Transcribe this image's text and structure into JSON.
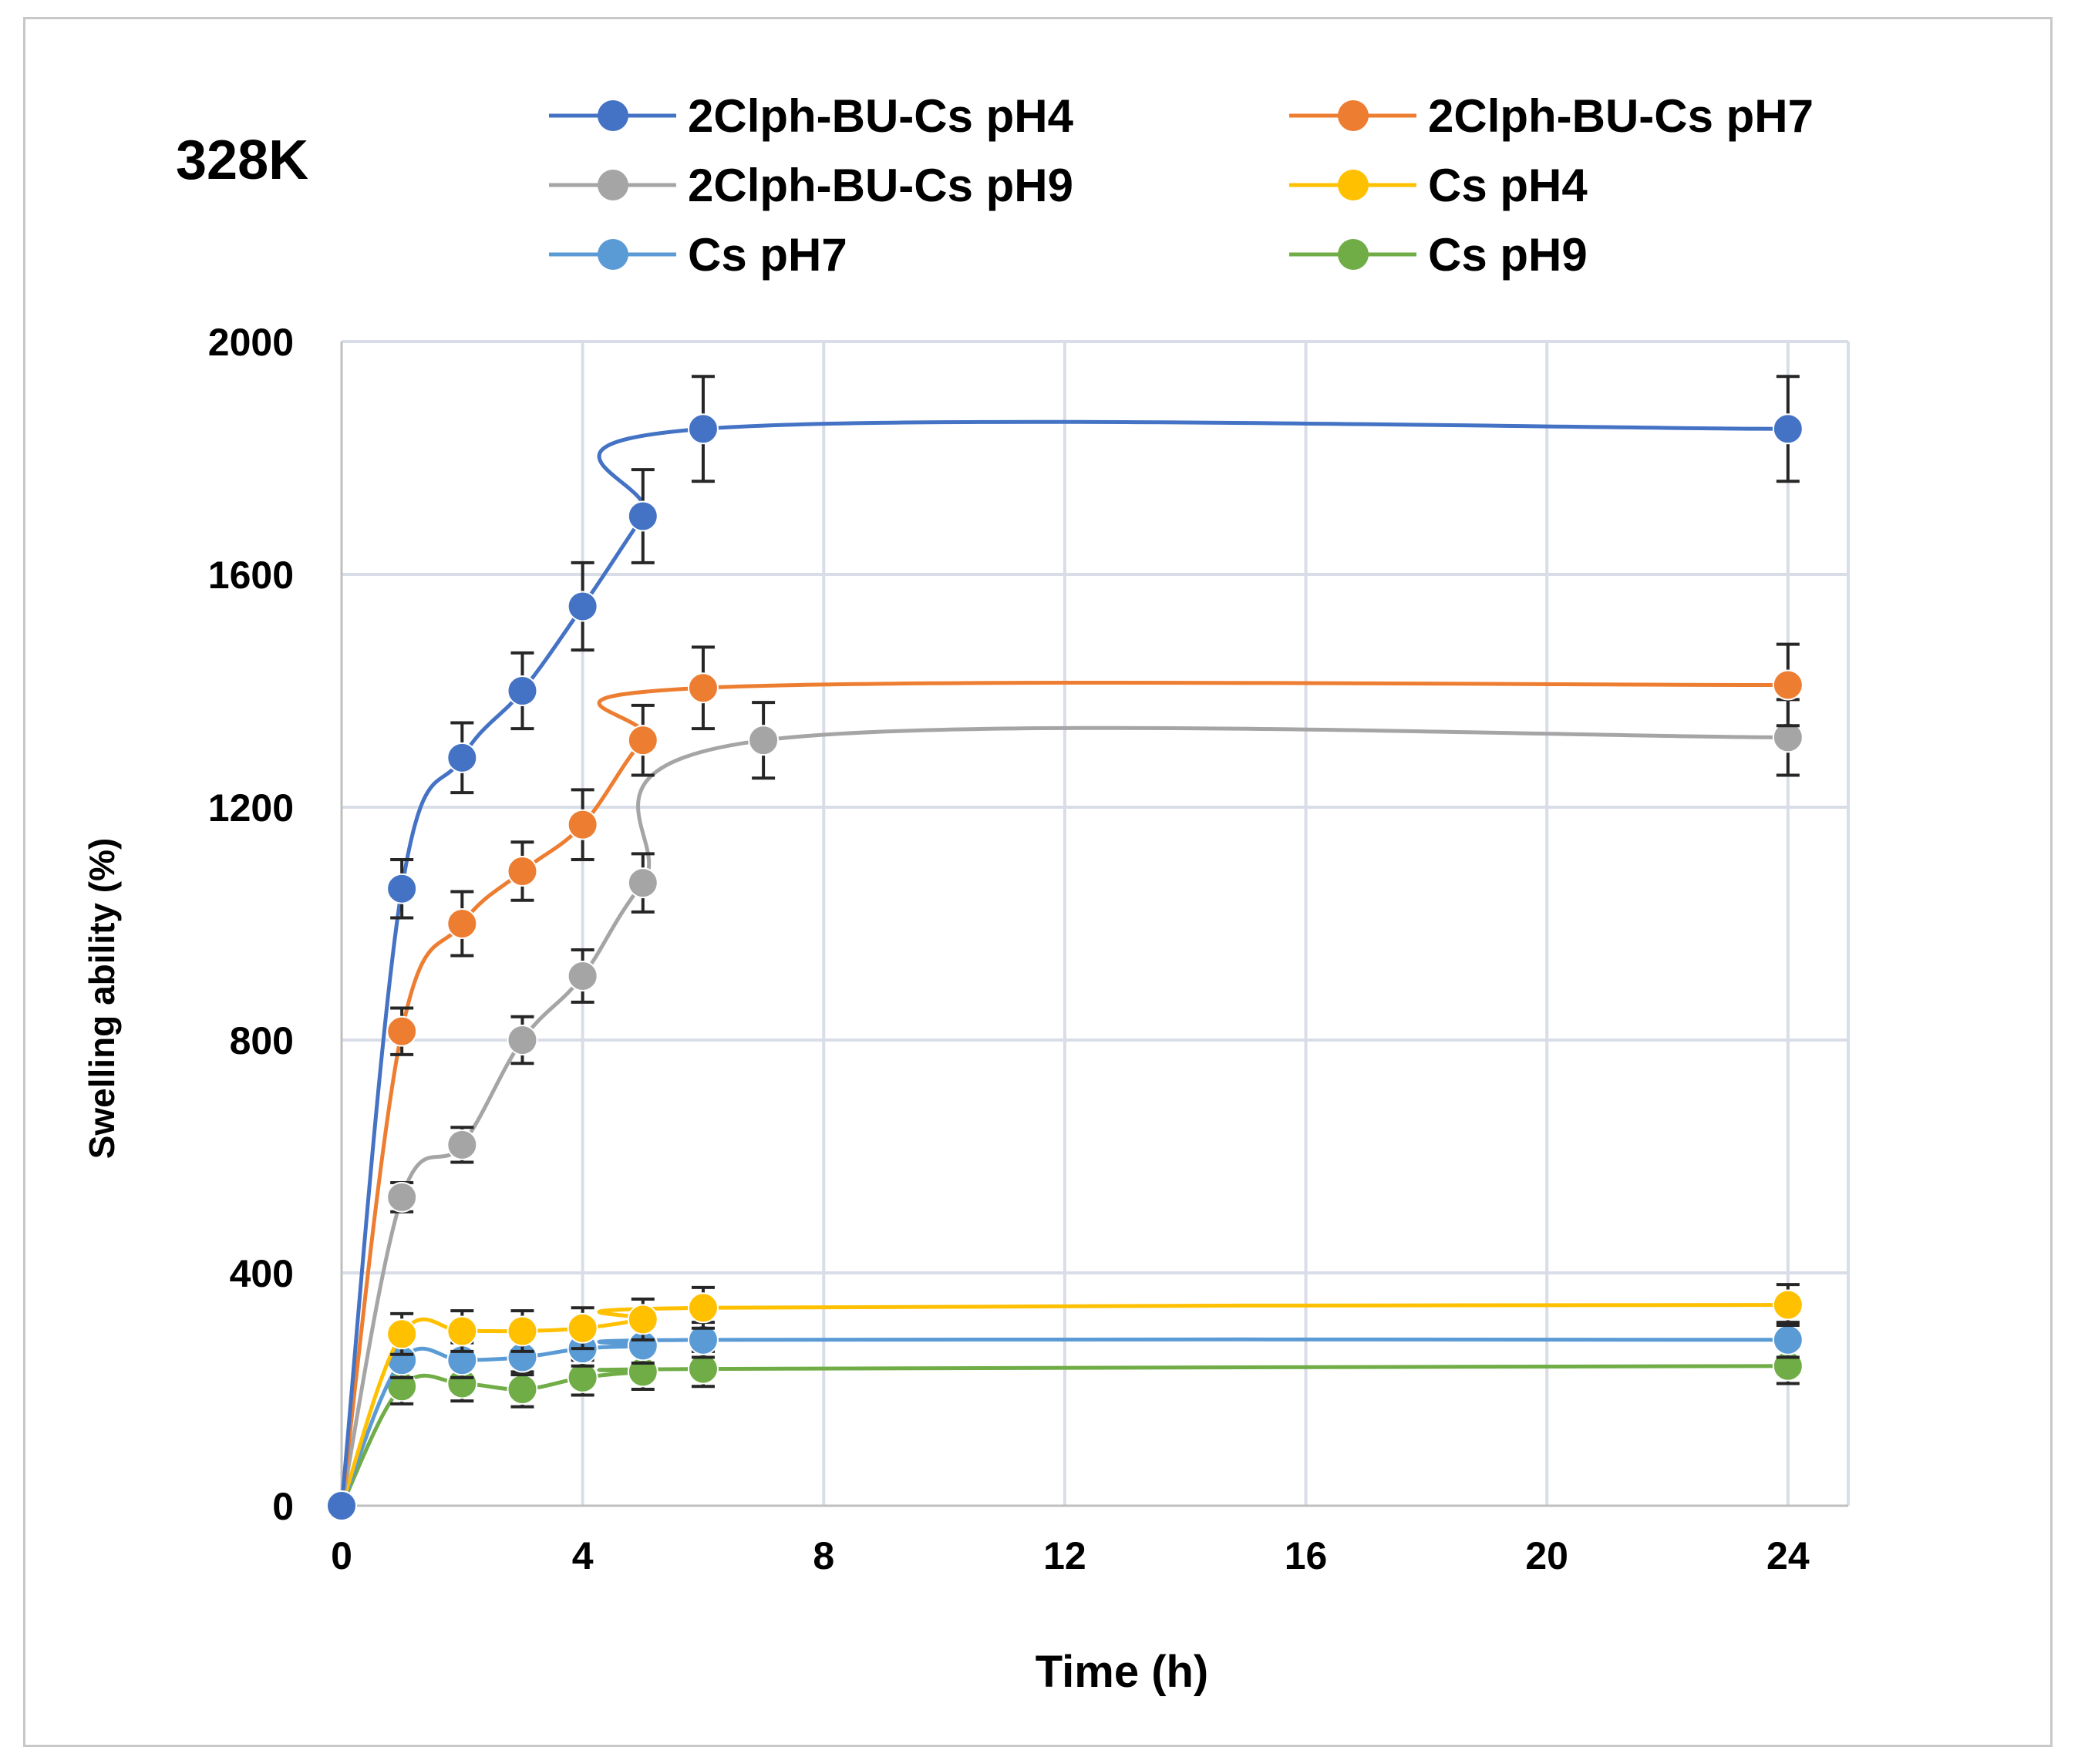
{
  "chart_data": {
    "type": "line",
    "title": "328K",
    "xlabel": "Time (h)",
    "ylabel": "Swelling ability (%)",
    "xlim": [
      0,
      25
    ],
    "ylim": [
      0,
      2000
    ],
    "xticks": [
      "0",
      "4",
      "8",
      "12",
      "16",
      "20",
      "24"
    ],
    "yticks": [
      "0",
      "400",
      "800",
      "1200",
      "1600",
      "2000"
    ],
    "grid": true,
    "legend_position": "top",
    "series": [
      {
        "name": "2Clph-BU-Cs pH4",
        "color": "#4472c4",
        "x": [
          0,
          1,
          2,
          3,
          4,
          5,
          6,
          24
        ],
        "values": [
          0,
          1060,
          1285,
          1400,
          1545,
          1700,
          1850,
          1850
        ],
        "errors": [
          0,
          50,
          60,
          65,
          75,
          80,
          90,
          90
        ]
      },
      {
        "name": "2Clph-BU-Cs pH7",
        "color": "#ed7d31",
        "x": [
          0,
          1,
          2,
          3,
          4,
          5,
          6,
          24
        ],
        "values": [
          0,
          815,
          1000,
          1090,
          1170,
          1315,
          1405,
          1410
        ],
        "errors": [
          0,
          40,
          55,
          50,
          60,
          60,
          70,
          70
        ]
      },
      {
        "name": "2Clph-BU-Cs pH9",
        "color": "#a5a5a5",
        "x": [
          0,
          1,
          2,
          3,
          4,
          5,
          7,
          24
        ],
        "values": [
          0,
          530,
          620,
          800,
          910,
          1070,
          1315,
          1320
        ],
        "errors": [
          0,
          25,
          30,
          40,
          45,
          50,
          65,
          65
        ]
      },
      {
        "name": "Cs pH4",
        "color": "#ffc000",
        "x": [
          0,
          1,
          2,
          3,
          4,
          5,
          6,
          24
        ],
        "values": [
          0,
          295,
          300,
          300,
          305,
          320,
          340,
          345
        ],
        "errors": [
          0,
          35,
          35,
          35,
          35,
          35,
          35,
          35
        ]
      },
      {
        "name": "Cs pH7",
        "color": "#5b9bd5",
        "x": [
          0,
          1,
          2,
          3,
          4,
          5,
          6,
          24
        ],
        "values": [
          0,
          250,
          250,
          255,
          270,
          275,
          285,
          285
        ],
        "errors": [
          0,
          30,
          30,
          30,
          30,
          30,
          30,
          30
        ]
      },
      {
        "name": "Cs pH9",
        "color": "#70ad47",
        "x": [
          0,
          1,
          2,
          3,
          4,
          5,
          6,
          24
        ],
        "values": [
          0,
          205,
          210,
          200,
          220,
          230,
          235,
          240
        ],
        "errors": [
          0,
          30,
          30,
          30,
          30,
          30,
          30,
          30
        ]
      }
    ]
  }
}
